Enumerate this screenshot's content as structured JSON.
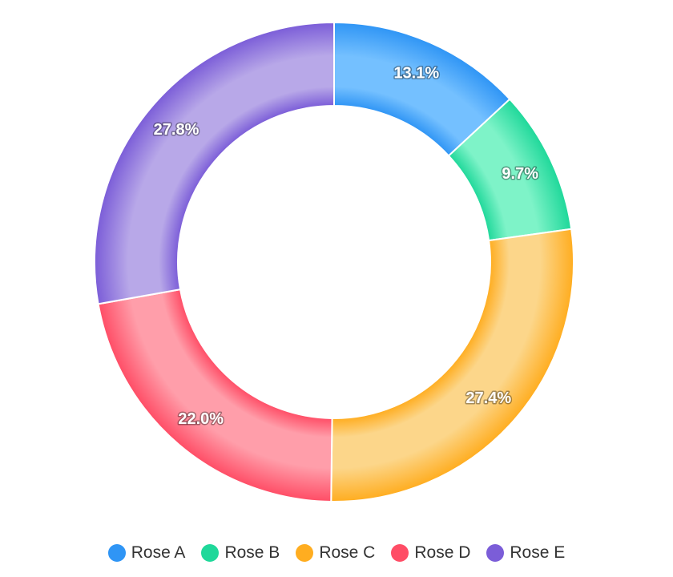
{
  "chart_data": {
    "type": "pie",
    "variant": "donut",
    "title": "",
    "legend_position": "bottom",
    "start_angle_deg": 0,
    "direction": "clockwise",
    "slices": [
      {
        "name": "Rose A",
        "value": 13.1,
        "label": "13.1%",
        "color": "#2f95f5",
        "light": "#74c0ff"
      },
      {
        "name": "Rose B",
        "value": 9.7,
        "label": "9.7%",
        "color": "#1fd89a",
        "light": "#7ef3c8"
      },
      {
        "name": "Rose C",
        "value": 27.4,
        "label": "27.4%",
        "color": "#ffad20",
        "light": "#fcd68a"
      },
      {
        "name": "Rose D",
        "value": 22.0,
        "label": "22.0%",
        "color": "#ff4d66",
        "light": "#ff9eaa"
      },
      {
        "name": "Rose E",
        "value": 27.8,
        "label": "27.8%",
        "color": "#7b5dd8",
        "light": "#b8a8e8"
      }
    ]
  }
}
